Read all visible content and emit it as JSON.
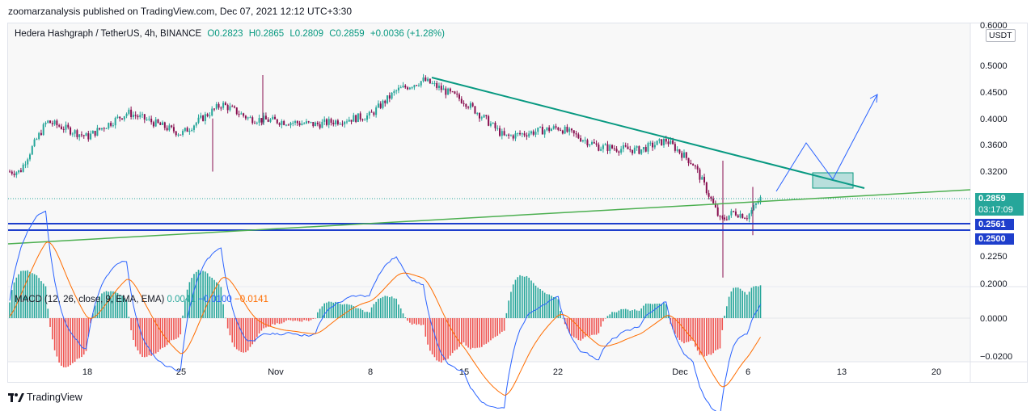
{
  "header": {
    "published": "zoomarzanalysis published on TradingView.com, Dec 07, 2021 12:12 UTC+3:30"
  },
  "legend": {
    "symbol": "Hedera Hashgraph / TetherUS, 4h, BINANCE",
    "open": "O0.2823",
    "high": "H0.2865",
    "low": "L0.2809",
    "close": "C0.2859",
    "change": "+0.0036 (+1.28%)"
  },
  "macd_legend": {
    "label": "MACD (12, 26, close, 9, EMA, EMA)",
    "hist": "0.0041",
    "macd": "−0.0100",
    "signal": "−0.0141"
  },
  "currency_badge": "USDT",
  "price_tags": {
    "last_price": "0.2859",
    "countdown": "03:17:09",
    "level_1": "0.2561",
    "level_2": "0.2500"
  },
  "footer": {
    "brand": "TradingView"
  },
  "colors": {
    "up": "#26a69a",
    "down": "#880e4f",
    "trend_teal": "#089981",
    "trend_green": "#4caf50",
    "level_blue": "#1e3ecc",
    "forecast_blue": "#2962ff",
    "macd_line": "#2962ff",
    "signal_line": "#ff6d00"
  },
  "chart_data": [
    {
      "type": "candlestick",
      "title": "Hedera Hashgraph / TetherUS, 4h, BINANCE",
      "x_ticks": [
        "18",
        "25",
        "Nov",
        "8",
        "15",
        "22",
        "Dec",
        "6",
        "13",
        "20"
      ],
      "y_ticks": [
        "0.6000",
        "0.5000",
        "0.4500",
        "0.4000",
        "0.3600",
        "0.3200",
        "0.2859",
        "0.2561",
        "0.2500",
        "0.2250",
        "0.2000"
      ],
      "y_scale": "log",
      "last_price": 0.2859,
      "horizontal_levels": [
        0.2561,
        0.25
      ],
      "price_path_approx": [
        [
          "Oct 13",
          0.32
        ],
        [
          "Oct 15",
          0.395
        ],
        [
          "Oct 18",
          0.37
        ],
        [
          "Oct 21",
          0.41
        ],
        [
          "Oct 25",
          0.375
        ],
        [
          "Oct 28",
          0.425
        ],
        [
          "Oct 30",
          0.4
        ],
        [
          "Nov 4",
          0.39
        ],
        [
          "Nov 8",
          0.405
        ],
        [
          "Nov 10",
          0.45
        ],
        [
          "Nov 12",
          0.47
        ],
        [
          "Nov 15",
          0.43
        ],
        [
          "Nov 18",
          0.37
        ],
        [
          "Nov 22",
          0.385
        ],
        [
          "Nov 25",
          0.355
        ],
        [
          "Nov 28",
          0.35
        ],
        [
          "Nov 30",
          0.365
        ],
        [
          "Dec 2",
          0.33
        ],
        [
          "Dec 4",
          0.26
        ],
        [
          "Dec 5",
          0.27
        ],
        [
          "Dec 6",
          0.265
        ],
        [
          "Dec 7",
          0.2859
        ]
      ],
      "trendlines": [
        {
          "from": [
            "Nov 11",
            0.48
          ],
          "to": [
            "Dec 14",
            0.302
          ]
        },
        {
          "from": [
            "Oct 12",
            0.235
          ],
          "to": [
            "Dec 23",
            0.3
          ]
        }
      ],
      "forecast_path": [
        [
          "Dec 8",
          0.3
        ],
        [
          "Dec 10",
          0.36
        ],
        [
          "Dec 12",
          0.305
        ],
        [
          "Dec 15",
          0.445
        ]
      ],
      "target_zone": {
        "from": [
          "Dec 11",
          0.3
        ],
        "to": [
          "Dec 14",
          0.32
        ]
      }
    },
    {
      "type": "histogram+line",
      "title": "MACD (12, 26, close, 9, EMA, EMA)",
      "y_ticks": [
        "0.0000",
        "−0.0200"
      ],
      "histogram": 0.0041,
      "macd": -0.01,
      "signal": -0.0141
    }
  ]
}
